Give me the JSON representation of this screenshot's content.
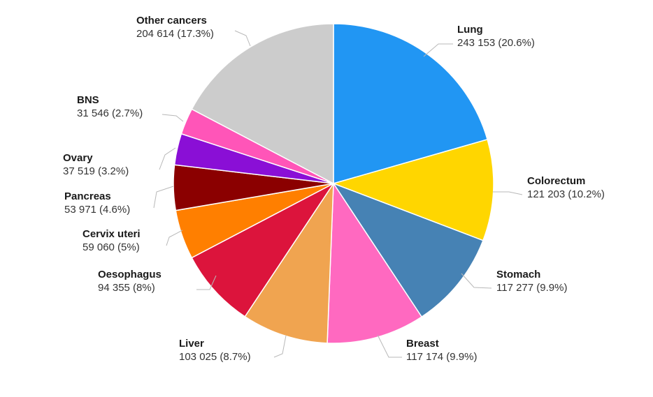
{
  "chart_data": {
    "type": "pie",
    "title": "",
    "slices": [
      {
        "name": "Lung",
        "value": 243153,
        "value_label": "243 153 (20.6%)",
        "percent": 20.6,
        "color": "#2196f3"
      },
      {
        "name": "Colorectum",
        "value": 121203,
        "value_label": "121 203 (10.2%)",
        "percent": 10.2,
        "color": "#ffd600"
      },
      {
        "name": "Stomach",
        "value": 117277,
        "value_label": "117 277 (9.9%)",
        "percent": 9.9,
        "color": "#4682b4"
      },
      {
        "name": "Breast",
        "value": 117174,
        "value_label": "117 174 (9.9%)",
        "percent": 9.9,
        "color": "#ff69c0"
      },
      {
        "name": "Liver",
        "value": 103025,
        "value_label": "103 025 (8.7%)",
        "percent": 8.7,
        "color": "#f0a450"
      },
      {
        "name": "Oesophagus",
        "value": 94355,
        "value_label": "94 355 (8%)",
        "percent": 8,
        "color": "#dc143c"
      },
      {
        "name": "Cervix uteri",
        "value": 59060,
        "value_label": "59 060 (5%)",
        "percent": 5,
        "color": "#ff7f00"
      },
      {
        "name": "Pancreas",
        "value": 53971,
        "value_label": "53 971 (4.6%)",
        "percent": 4.6,
        "color": "#8b0000"
      },
      {
        "name": "Ovary",
        "value": 37519,
        "value_label": "37 519 (3.2%)",
        "percent": 3.2,
        "color": "#8a0fd6"
      },
      {
        "name": "BNS",
        "value": 31546,
        "value_label": "31 546 (2.7%)",
        "percent": 2.7,
        "color": "#ff55b8"
      },
      {
        "name": "Other cancers",
        "value": 204614,
        "value_label": "204 614 (17.3%)",
        "percent": 17.3,
        "color": "#cccccc"
      }
    ]
  }
}
